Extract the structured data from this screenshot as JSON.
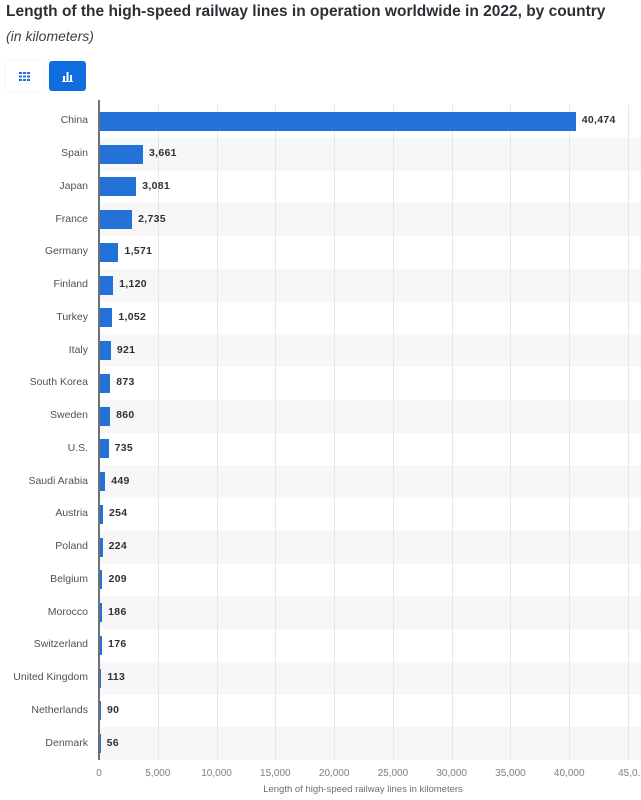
{
  "header": {
    "title": "Length of the high-speed railway lines in operation worldwide in 2022, by country",
    "subtitle": "(in kilometers)"
  },
  "toolbar": {
    "table_button_icon": "table-grid-icon",
    "chart_button_icon": "bar-chart-icon",
    "active": "chart"
  },
  "colors": {
    "bar": "#2472d8",
    "active_button": "#0f6ddf",
    "band": "#f7f7f8"
  },
  "chart_data": {
    "type": "bar",
    "orientation": "horizontal",
    "title": "Length of the high-speed railway lines in operation worldwide in 2022, by country",
    "subtitle": "(in kilometers)",
    "categories": [
      "China",
      "Spain",
      "Japan",
      "France",
      "Germany",
      "Finland",
      "Turkey",
      "Italy",
      "South Korea",
      "Sweden",
      "U.S.",
      "Saudi Arabia",
      "Austria",
      "Poland",
      "Belgium",
      "Morocco",
      "Switzerland",
      "United Kingdom",
      "Netherlands",
      "Denmark"
    ],
    "values": [
      40474,
      3661,
      3081,
      2735,
      1571,
      1120,
      1052,
      921,
      873,
      860,
      735,
      449,
      254,
      224,
      209,
      186,
      176,
      113,
      90,
      56
    ],
    "value_labels": [
      "40,474",
      "3,661",
      "3,081",
      "2,735",
      "1,571",
      "1,120",
      "1,052",
      "921",
      "873",
      "860",
      "735",
      "449",
      "254",
      "224",
      "209",
      "186",
      "176",
      "113",
      "90",
      "56"
    ],
    "xlabel": "Length of high-speed railway lines in kilometers",
    "ylabel": "",
    "xlim": [
      0,
      45000
    ],
    "x_ticks": [
      "0",
      "5,000",
      "10,000",
      "15,000",
      "20,000",
      "25,000",
      "30,000",
      "35,000",
      "40,000",
      "45,0..."
    ],
    "grid": true,
    "legend": null
  }
}
